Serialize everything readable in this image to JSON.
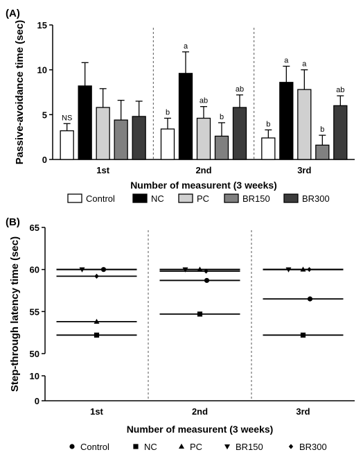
{
  "chart_data": [
    {
      "type": "bar",
      "panel_label": "(A)",
      "ylabel": "Passive-avoidance time (sec)",
      "xlabel": "Number of measurent  (3 weeks)",
      "ylim": [
        0,
        15
      ],
      "yticks": [
        "0",
        "5",
        "10",
        "15"
      ],
      "categories": [
        "1st",
        "2nd",
        "3rd"
      ],
      "legend": [
        "Control",
        "NC",
        "PC",
        "BR150",
        "BR300"
      ],
      "legend_position": "bottom",
      "series": [
        {
          "name": "Control",
          "color": "#ffffff",
          "values": [
            3.2,
            3.4,
            2.4
          ],
          "errors": [
            0.8,
            1.2,
            0.9
          ],
          "labels": [
            "NS",
            "b",
            "b"
          ]
        },
        {
          "name": "NC",
          "color": "#000000",
          "values": [
            8.2,
            9.6,
            8.6
          ],
          "errors": [
            2.6,
            2.4,
            1.8
          ],
          "labels": [
            "",
            "a",
            "a"
          ]
        },
        {
          "name": "PC",
          "color": "#d0d0d0",
          "values": [
            5.8,
            4.6,
            7.8
          ],
          "errors": [
            2.1,
            1.3,
            2.2
          ],
          "labels": [
            "",
            "ab",
            "a"
          ]
        },
        {
          "name": "BR150",
          "color": "#808080",
          "values": [
            4.4,
            2.6,
            1.6
          ],
          "errors": [
            2.2,
            1.5,
            1.1
          ],
          "labels": [
            "",
            "b",
            "b"
          ]
        },
        {
          "name": "BR300",
          "color": "#3c3c3c",
          "values": [
            4.8,
            5.8,
            6.0
          ],
          "errors": [
            1.7,
            1.4,
            1.1
          ],
          "labels": [
            "",
            "ab",
            "ab"
          ]
        }
      ]
    },
    {
      "type": "scatter",
      "panel_label": "(B)",
      "ylabel": "Step-through latency time (sec)",
      "xlabel": "Number of measurent  (3 weeks)",
      "ylim": [
        0,
        65
      ],
      "axis_break": [
        10,
        50
      ],
      "yticks": [
        "0",
        "10",
        "50",
        "55",
        "60",
        "65"
      ],
      "categories": [
        "1st",
        "2nd",
        "3rd"
      ],
      "legend": [
        "Control",
        "NC",
        "PC",
        "BR150",
        "BR300"
      ],
      "legend_position": "bottom",
      "series": [
        {
          "name": "Control",
          "marker": "circle",
          "values": [
            60.0,
            58.7,
            56.5
          ]
        },
        {
          "name": "NC",
          "marker": "square",
          "values": [
            52.2,
            54.7,
            52.2
          ]
        },
        {
          "name": "PC",
          "marker": "triangle-up",
          "values": [
            53.8,
            60.0,
            60.0
          ]
        },
        {
          "name": "BR150",
          "marker": "triangle-down",
          "values": [
            60.0,
            60.0,
            60.0
          ]
        },
        {
          "name": "BR300",
          "marker": "diamond",
          "values": [
            59.2,
            59.8,
            60.0
          ]
        }
      ]
    }
  ]
}
